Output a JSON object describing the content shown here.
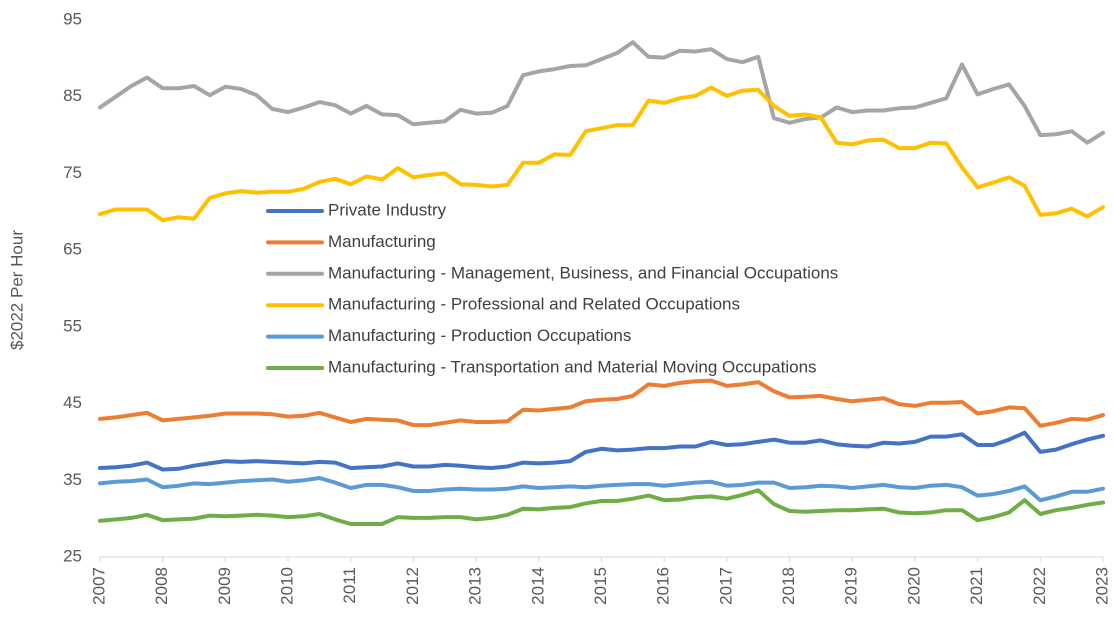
{
  "chart_data": {
    "type": "line",
    "y_label": "$2022 Per Hour",
    "categories": [
      "2007",
      null,
      null,
      null,
      "2008",
      null,
      null,
      null,
      "2009",
      null,
      null,
      null,
      "2010",
      null,
      null,
      null,
      "2011",
      null,
      null,
      null,
      "2012",
      null,
      null,
      null,
      "2013",
      null,
      null,
      null,
      "2014",
      null,
      null,
      null,
      "2015",
      null,
      null,
      null,
      "2016",
      null,
      null,
      null,
      "2017",
      null,
      null,
      null,
      "2018",
      null,
      null,
      null,
      "2019",
      null,
      null,
      null,
      "2020",
      null,
      null,
      null,
      "2021",
      null,
      null,
      null,
      "2022",
      null,
      null,
      null,
      "2023"
    ],
    "ylim": [
      25,
      95
    ],
    "yticks": [
      25,
      35,
      45,
      55,
      65,
      75,
      85,
      95
    ],
    "grid": false,
    "series": [
      {
        "name": "Private Industry",
        "color": "#4472c4",
        "values": [
          36.6,
          36.7,
          36.9,
          37.3,
          36.4,
          36.5,
          36.9,
          37.2,
          37.5,
          37.4,
          37.5,
          37.4,
          37.3,
          37.2,
          37.4,
          37.3,
          36.6,
          36.7,
          36.8,
          37.2,
          36.8,
          36.8,
          37.0,
          36.9,
          36.7,
          36.6,
          36.8,
          37.3,
          37.2,
          37.3,
          37.5,
          38.7,
          39.1,
          38.9,
          39.0,
          39.2,
          39.2,
          39.4,
          39.4,
          40.0,
          39.6,
          39.7,
          40.0,
          40.3,
          39.9,
          39.9,
          40.2,
          39.7,
          39.5,
          39.4,
          39.9,
          39.8,
          40.0,
          40.7,
          40.7,
          41.0,
          39.6,
          39.6,
          40.3,
          41.2,
          38.7,
          39.0,
          39.7,
          40.3,
          40.8
        ]
      },
      {
        "name": "Manufacturing",
        "color": "#ed7d31",
        "values": [
          43.0,
          43.2,
          43.5,
          43.8,
          42.8,
          43.0,
          43.2,
          43.4,
          43.7,
          43.7,
          43.7,
          43.6,
          43.3,
          43.4,
          43.8,
          43.2,
          42.6,
          43.0,
          42.9,
          42.8,
          42.2,
          42.2,
          42.5,
          42.8,
          42.6,
          42.6,
          42.7,
          44.2,
          44.1,
          44.3,
          44.5,
          45.3,
          45.5,
          45.6,
          46.0,
          47.5,
          47.3,
          47.7,
          47.9,
          48.0,
          47.3,
          47.5,
          47.8,
          46.6,
          45.8,
          45.9,
          46.0,
          45.6,
          45.3,
          45.5,
          45.7,
          44.9,
          44.7,
          45.1,
          45.1,
          45.2,
          43.7,
          44.0,
          44.5,
          44.4,
          42.1,
          42.5,
          43.0,
          42.9,
          43.5
        ]
      },
      {
        "name": "Manufacturing - Management, Business, and Financial Occupations",
        "color": "#a5a5a5",
        "values": [
          83.6,
          85.0,
          86.4,
          87.5,
          86.1,
          86.1,
          86.4,
          85.2,
          86.3,
          86.0,
          85.2,
          83.4,
          83.0,
          83.6,
          84.3,
          83.9,
          82.8,
          83.8,
          82.7,
          82.6,
          81.4,
          81.6,
          81.8,
          83.3,
          82.8,
          82.9,
          83.8,
          87.8,
          88.3,
          88.6,
          89.0,
          89.1,
          89.9,
          90.7,
          92.1,
          90.2,
          90.1,
          91.0,
          90.9,
          91.2,
          89.9,
          89.5,
          90.2,
          82.2,
          81.6,
          82.1,
          82.3,
          83.6,
          83.0,
          83.2,
          83.2,
          83.5,
          83.6,
          84.2,
          84.8,
          89.2,
          85.3,
          86.0,
          86.6,
          83.8,
          80.0,
          80.1,
          80.5,
          79.0,
          80.3
        ]
      },
      {
        "name": "Manufacturing - Professional and Related Occupations",
        "color": "#ffc000",
        "values": [
          69.7,
          70.3,
          70.3,
          70.3,
          68.9,
          69.3,
          69.1,
          71.8,
          72.4,
          72.7,
          72.5,
          72.6,
          72.6,
          73.0,
          73.9,
          74.3,
          73.6,
          74.6,
          74.2,
          75.7,
          74.5,
          74.8,
          75.0,
          73.6,
          73.5,
          73.3,
          73.5,
          76.4,
          76.4,
          77.5,
          77.4,
          80.5,
          80.9,
          81.3,
          81.3,
          84.5,
          84.2,
          84.8,
          85.1,
          86.2,
          85.1,
          85.8,
          85.9,
          83.8,
          82.5,
          82.7,
          82.3,
          79.0,
          78.8,
          79.3,
          79.4,
          78.3,
          78.3,
          79.0,
          78.9,
          75.8,
          73.2,
          73.8,
          74.5,
          73.4,
          69.6,
          69.8,
          70.4,
          69.4,
          70.6
        ]
      },
      {
        "name": "Manufacturing - Production Occupations",
        "color": "#5b9bd5",
        "values": [
          34.6,
          34.8,
          34.9,
          35.1,
          34.1,
          34.3,
          34.6,
          34.5,
          34.7,
          34.9,
          35.0,
          35.1,
          34.8,
          35.0,
          35.3,
          34.7,
          34.0,
          34.4,
          34.4,
          34.1,
          33.6,
          33.6,
          33.8,
          33.9,
          33.8,
          33.8,
          33.9,
          34.2,
          34.0,
          34.1,
          34.2,
          34.1,
          34.3,
          34.4,
          34.5,
          34.5,
          34.3,
          34.5,
          34.7,
          34.8,
          34.3,
          34.4,
          34.7,
          34.7,
          34.0,
          34.1,
          34.3,
          34.2,
          34.0,
          34.2,
          34.4,
          34.1,
          34.0,
          34.3,
          34.4,
          34.1,
          33.0,
          33.2,
          33.6,
          34.2,
          32.4,
          32.9,
          33.5,
          33.5,
          33.9
        ]
      },
      {
        "name": "Manufacturing - Transportation and Material Moving Occupations",
        "color": "#70ad47",
        "values": [
          29.7,
          29.9,
          30.1,
          30.5,
          29.8,
          29.9,
          30.0,
          30.4,
          30.3,
          30.4,
          30.5,
          30.4,
          30.2,
          30.3,
          30.6,
          29.9,
          29.3,
          29.3,
          29.3,
          30.2,
          30.1,
          30.1,
          30.2,
          30.2,
          29.9,
          30.1,
          30.5,
          31.3,
          31.2,
          31.4,
          31.5,
          32.0,
          32.3,
          32.3,
          32.6,
          33.0,
          32.4,
          32.5,
          32.8,
          32.9,
          32.6,
          33.1,
          33.7,
          31.9,
          31.0,
          30.9,
          31.0,
          31.1,
          31.1,
          31.2,
          31.3,
          30.8,
          30.7,
          30.8,
          31.1,
          31.1,
          29.8,
          30.2,
          30.8,
          32.4,
          30.6,
          31.1,
          31.4,
          31.8,
          32.1
        ]
      }
    ]
  }
}
